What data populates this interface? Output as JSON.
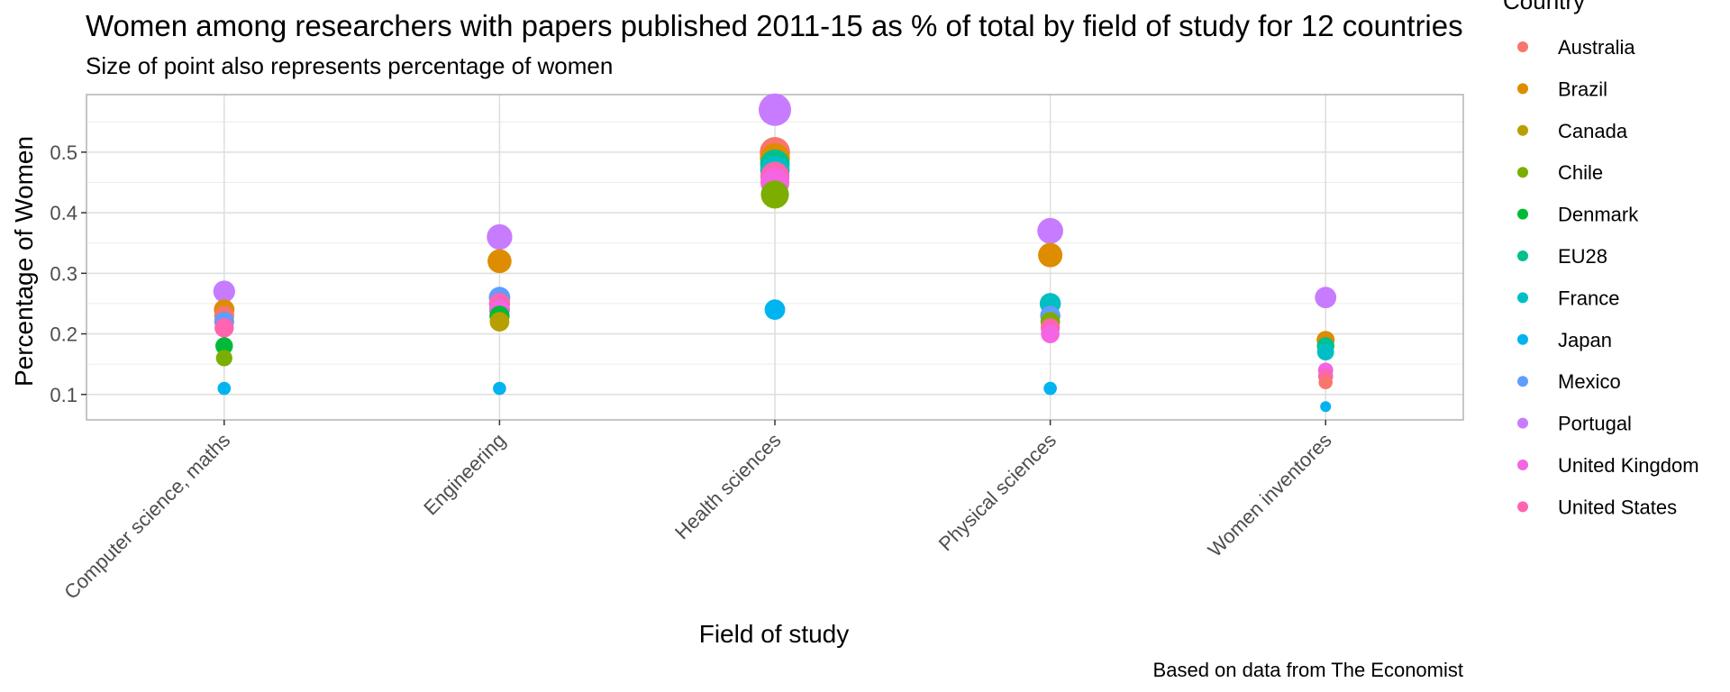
{
  "chart_data": {
    "type": "scatter",
    "title": "Women among researchers with papers published 2011-15 as % of total by field of study for 12 countries",
    "subtitle": "Size of point also represents percentage of women",
    "xlabel": "Field of study",
    "ylabel": "Percentage of Women",
    "caption": "Based on data from The Economist",
    "categories": [
      "Computer science, maths",
      "Engineering",
      "Health sciences",
      "Physical sciences",
      "Women inventores"
    ],
    "y_ticks": [
      "0.1",
      "0.2",
      "0.3",
      "0.4",
      "0.5"
    ],
    "y_tick_values": [
      0.1,
      0.2,
      0.3,
      0.4,
      0.5
    ],
    "ylim": [
      0.058,
      0.595
    ],
    "grid": true,
    "legend": {
      "title": "Country",
      "position": "right",
      "entries": [
        {
          "name": "Australia",
          "color": "#F8766D"
        },
        {
          "name": "Brazil",
          "color": "#DE8C00"
        },
        {
          "name": "Canada",
          "color": "#B79F00"
        },
        {
          "name": "Chile",
          "color": "#7CAE00"
        },
        {
          "name": "Denmark",
          "color": "#00BA38"
        },
        {
          "name": "EU28",
          "color": "#00C08B"
        },
        {
          "name": "France",
          "color": "#00BFC4"
        },
        {
          "name": "Japan",
          "color": "#00B4F0"
        },
        {
          "name": "Mexico",
          "color": "#619CFF"
        },
        {
          "name": "Portugal",
          "color": "#C77CFF"
        },
        {
          "name": "United Kingdom",
          "color": "#F564E3"
        },
        {
          "name": "United States",
          "color": "#FF64B0"
        }
      ]
    },
    "series": [
      {
        "name": "Australia",
        "values": [
          0.23,
          0.25,
          0.5,
          0.23,
          0.12
        ]
      },
      {
        "name": "Brazil",
        "values": [
          0.24,
          0.32,
          0.49,
          0.33,
          0.19
        ]
      },
      {
        "name": "Canada",
        "values": [
          0.22,
          0.22,
          0.45,
          0.21,
          0.13
        ]
      },
      {
        "name": "Chile",
        "values": [
          0.16,
          0.23,
          0.43,
          0.22,
          0.13
        ]
      },
      {
        "name": "Denmark",
        "values": [
          0.18,
          0.23,
          0.47,
          0.23,
          0.13
        ]
      },
      {
        "name": "EU28",
        "values": [
          0.22,
          0.24,
          0.48,
          0.25,
          0.18
        ]
      },
      {
        "name": "France",
        "values": [
          0.22,
          0.24,
          0.47,
          0.25,
          0.17
        ]
      },
      {
        "name": "Japan",
        "values": [
          0.11,
          0.11,
          0.24,
          0.11,
          0.08
        ]
      },
      {
        "name": "Mexico",
        "values": [
          0.22,
          0.26,
          0.46,
          0.23,
          0.13
        ]
      },
      {
        "name": "Portugal",
        "values": [
          0.27,
          0.36,
          0.57,
          0.37,
          0.26
        ]
      },
      {
        "name": "United Kingdom",
        "values": [
          0.21,
          0.24,
          0.45,
          0.2,
          0.14
        ]
      },
      {
        "name": "United States",
        "values": [
          0.21,
          0.25,
          0.46,
          0.21,
          0.13
        ]
      }
    ]
  }
}
